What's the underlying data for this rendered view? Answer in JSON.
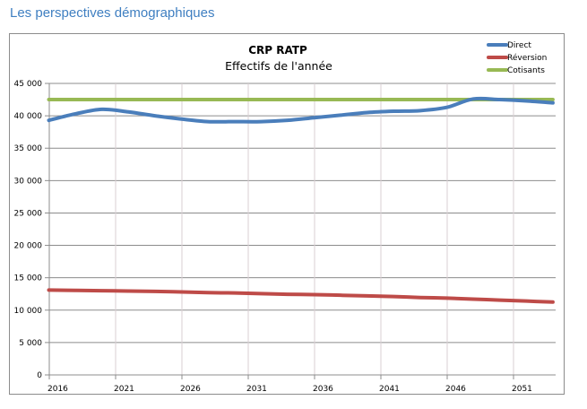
{
  "page": {
    "section_title": "Les perspectives démographiques"
  },
  "chart_data": {
    "type": "line",
    "title": "CRP RATP",
    "subtitle": "Effectifs de l'année",
    "xlabel": "",
    "ylabel": "",
    "x_tick_labels": [
      "2016",
      "2021",
      "2026",
      "2031",
      "2036",
      "2041",
      "2046",
      "2051"
    ],
    "y_tick_labels": [
      "0",
      "5 000",
      "10 000",
      "15 000",
      "20 000",
      "25 000",
      "30 000",
      "35 000",
      "40 000",
      "45 000"
    ],
    "xlim": [
      2016,
      2055
    ],
    "ylim": [
      0,
      45000
    ],
    "grid": "both",
    "legend_position": "top-right",
    "x": [
      2016,
      2018,
      2020,
      2022,
      2024,
      2026,
      2028,
      2030,
      2032,
      2034,
      2036,
      2038,
      2040,
      2042,
      2044,
      2046,
      2048,
      2050,
      2052,
      2054
    ],
    "series": [
      {
        "name": "Direct",
        "color": "#4a7ebb",
        "values": [
          39300,
          40300,
          41000,
          40600,
          40000,
          39500,
          39100,
          39100,
          39100,
          39300,
          39700,
          40100,
          40500,
          40700,
          40800,
          41300,
          42600,
          42500,
          42300,
          42000
        ]
      },
      {
        "name": "Réversion",
        "color": "#be4b48",
        "values": [
          13100,
          13050,
          13000,
          12950,
          12900,
          12800,
          12700,
          12650,
          12550,
          12450,
          12400,
          12300,
          12200,
          12100,
          11950,
          11850,
          11700,
          11550,
          11400,
          11250
        ]
      },
      {
        "name": "Cotisants",
        "color": "#98b954",
        "values": [
          42500,
          42500,
          42500,
          42500,
          42500,
          42500,
          42500,
          42500,
          42500,
          42500,
          42500,
          42500,
          42500,
          42500,
          42500,
          42500,
          42500,
          42500,
          42500,
          42500
        ]
      }
    ]
  }
}
